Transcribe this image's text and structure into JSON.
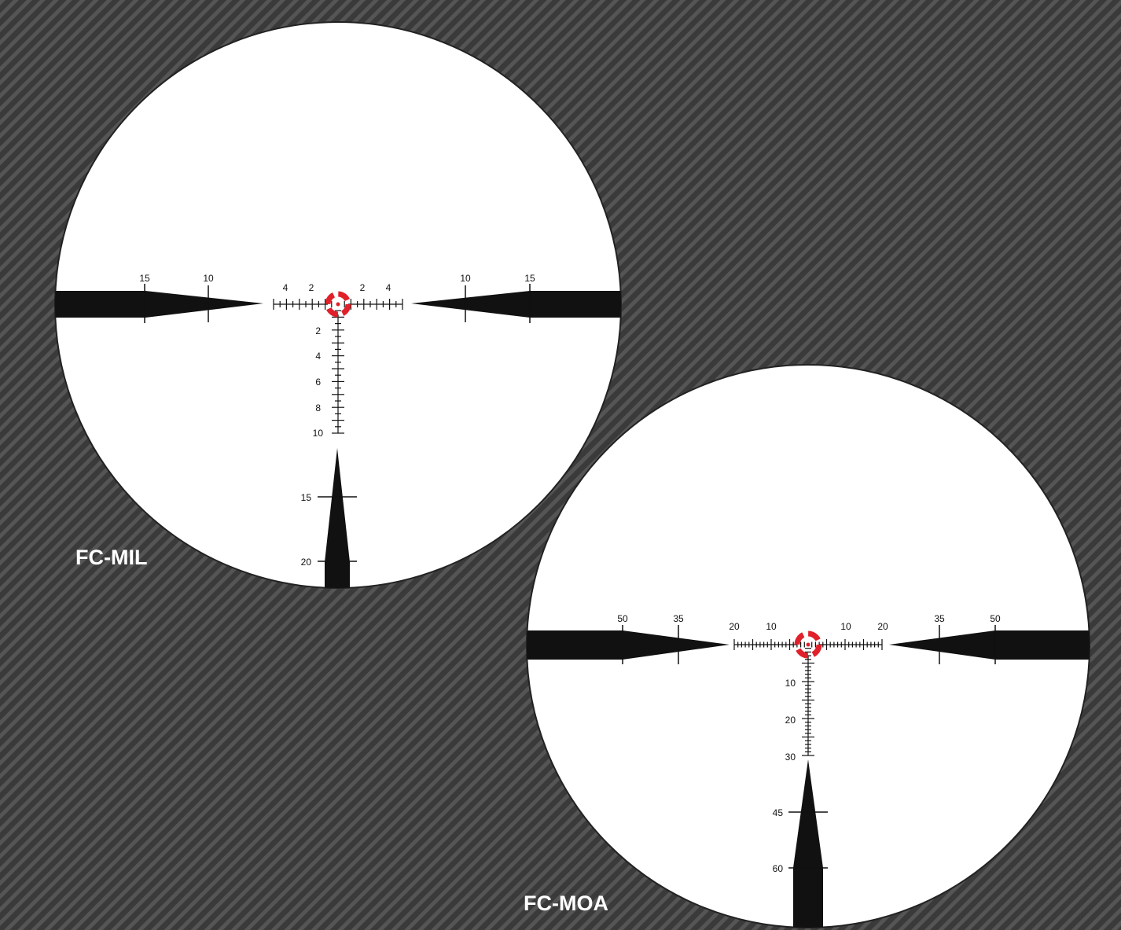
{
  "colors": {
    "background": "#3a3a3a",
    "background_stripe": "#555555",
    "field": "#ffffff",
    "reticle": "#111111",
    "dot": "#e0202a"
  },
  "reticles": [
    {
      "name": "FC-MIL",
      "horizontal_labels": {
        "left": [
          "15",
          "10",
          "4",
          "2"
        ],
        "right": [
          "2",
          "4",
          "10",
          "15"
        ]
      },
      "vertical_labels": [
        "2",
        "4",
        "6",
        "8",
        "10",
        "15",
        "20"
      ]
    },
    {
      "name": "FC-MOA",
      "horizontal_labels": {
        "left": [
          "50",
          "35",
          "20",
          "10"
        ],
        "right": [
          "10",
          "20",
          "35",
          "50"
        ]
      },
      "vertical_labels": [
        "10",
        "20",
        "30",
        "45",
        "60"
      ]
    }
  ]
}
